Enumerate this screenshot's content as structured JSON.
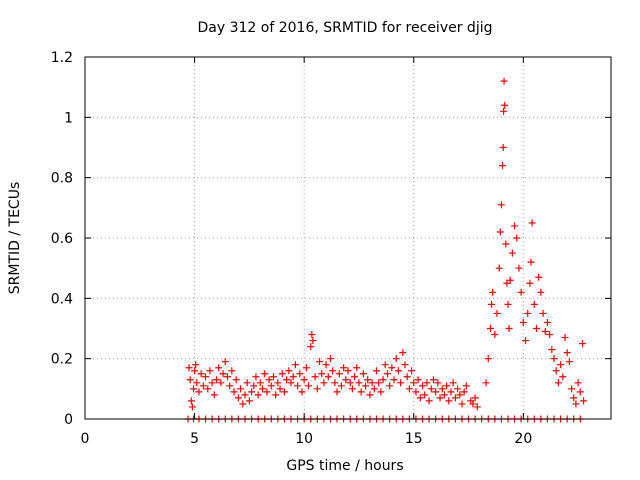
{
  "chart_data": {
    "type": "scatter",
    "title": "Day 312 of 2016, SRMTID for receiver djig",
    "xlabel": "GPS time / hours",
    "ylabel": "SRMTID / TECUs",
    "xlim": [
      0,
      24
    ],
    "ylim": [
      0,
      1.2
    ],
    "xticks": [
      0,
      5,
      10,
      15,
      20
    ],
    "xtick_labels": [
      "0",
      "5",
      "10",
      "15",
      "20"
    ],
    "yticks": [
      0,
      0.2,
      0.4,
      0.6,
      0.8,
      1.0,
      1.2
    ],
    "ytick_labels": [
      "0",
      "0.2",
      "0.4",
      "0.6",
      "0.8",
      "1",
      "1.2"
    ],
    "grid": true,
    "marker": "+",
    "color": "#ff0000",
    "series": [
      {
        "name": "SRMTID",
        "points": [
          [
            4.75,
            0.17
          ],
          [
            4.8,
            0.13
          ],
          [
            4.85,
            0.06
          ],
          [
            4.9,
            0.04
          ],
          [
            4.95,
            0.1
          ],
          [
            5.0,
            0.16
          ],
          [
            5.05,
            0.18
          ],
          [
            5.1,
            0.12
          ],
          [
            5.2,
            0.09
          ],
          [
            5.3,
            0.15
          ],
          [
            5.4,
            0.11
          ],
          [
            5.5,
            0.14
          ],
          [
            5.6,
            0.1
          ],
          [
            5.7,
            0.16
          ],
          [
            5.8,
            0.12
          ],
          [
            5.9,
            0.08
          ],
          [
            6.0,
            0.13
          ],
          [
            6.1,
            0.17
          ],
          [
            6.2,
            0.12
          ],
          [
            6.3,
            0.15
          ],
          [
            6.4,
            0.19
          ],
          [
            6.5,
            0.14
          ],
          [
            6.6,
            0.11
          ],
          [
            6.7,
            0.16
          ],
          [
            6.8,
            0.09
          ],
          [
            6.9,
            0.13
          ],
          [
            7.0,
            0.07
          ],
          [
            7.1,
            0.1
          ],
          [
            7.2,
            0.05
          ],
          [
            7.3,
            0.08
          ],
          [
            7.4,
            0.12
          ],
          [
            7.5,
            0.06
          ],
          [
            7.6,
            0.09
          ],
          [
            7.7,
            0.11
          ],
          [
            7.8,
            0.14
          ],
          [
            7.9,
            0.08
          ],
          [
            8.0,
            0.12
          ],
          [
            8.1,
            0.1
          ],
          [
            8.2,
            0.15
          ],
          [
            8.3,
            0.09
          ],
          [
            8.4,
            0.13
          ],
          [
            8.5,
            0.11
          ],
          [
            8.6,
            0.14
          ],
          [
            8.7,
            0.08
          ],
          [
            8.8,
            0.12
          ],
          [
            8.9,
            0.1
          ],
          [
            9.0,
            0.15
          ],
          [
            9.1,
            0.09
          ],
          [
            9.2,
            0.13
          ],
          [
            9.3,
            0.16
          ],
          [
            9.4,
            0.12
          ],
          [
            9.5,
            0.14
          ],
          [
            9.6,
            0.18
          ],
          [
            9.7,
            0.11
          ],
          [
            9.8,
            0.15
          ],
          [
            9.9,
            0.09
          ],
          [
            10.0,
            0.13
          ],
          [
            10.1,
            0.17
          ],
          [
            10.2,
            0.11
          ],
          [
            10.3,
            0.24
          ],
          [
            10.35,
            0.28
          ],
          [
            10.4,
            0.26
          ],
          [
            10.5,
            0.14
          ],
          [
            10.6,
            0.1
          ],
          [
            10.7,
            0.19
          ],
          [
            10.8,
            0.15
          ],
          [
            10.9,
            0.12
          ],
          [
            11.0,
            0.18
          ],
          [
            11.1,
            0.14
          ],
          [
            11.2,
            0.2
          ],
          [
            11.3,
            0.16
          ],
          [
            11.4,
            0.12
          ],
          [
            11.5,
            0.09
          ],
          [
            11.6,
            0.15
          ],
          [
            11.7,
            0.11
          ],
          [
            11.8,
            0.17
          ],
          [
            11.9,
            0.13
          ],
          [
            12.0,
            0.16
          ],
          [
            12.1,
            0.12
          ],
          [
            12.2,
            0.1
          ],
          [
            12.3,
            0.14
          ],
          [
            12.4,
            0.17
          ],
          [
            12.5,
            0.12
          ],
          [
            12.6,
            0.09
          ],
          [
            12.7,
            0.15
          ],
          [
            12.8,
            0.11
          ],
          [
            12.9,
            0.13
          ],
          [
            13.0,
            0.08
          ],
          [
            13.1,
            0.12
          ],
          [
            13.2,
            0.1
          ],
          [
            13.3,
            0.16
          ],
          [
            13.4,
            0.12
          ],
          [
            13.5,
            0.09
          ],
          [
            13.6,
            0.13
          ],
          [
            13.7,
            0.18
          ],
          [
            13.8,
            0.15
          ],
          [
            13.9,
            0.11
          ],
          [
            14.0,
            0.17
          ],
          [
            14.1,
            0.13
          ],
          [
            14.2,
            0.2
          ],
          [
            14.3,
            0.16
          ],
          [
            14.4,
            0.12
          ],
          [
            14.5,
            0.22
          ],
          [
            14.6,
            0.18
          ],
          [
            14.7,
            0.14
          ],
          [
            14.8,
            0.1
          ],
          [
            14.9,
            0.16
          ],
          [
            15.0,
            0.12
          ],
          [
            15.1,
            0.09
          ],
          [
            15.2,
            0.13
          ],
          [
            15.3,
            0.07
          ],
          [
            15.4,
            0.11
          ],
          [
            15.5,
            0.08
          ],
          [
            15.6,
            0.12
          ],
          [
            15.7,
            0.06
          ],
          [
            15.8,
            0.1
          ],
          [
            15.9,
            0.13
          ],
          [
            16.0,
            0.09
          ],
          [
            16.1,
            0.12
          ],
          [
            16.2,
            0.07
          ],
          [
            16.3,
            0.1
          ],
          [
            16.4,
            0.08
          ],
          [
            16.5,
            0.11
          ],
          [
            16.6,
            0.06
          ],
          [
            16.7,
            0.09
          ],
          [
            16.8,
            0.12
          ],
          [
            16.9,
            0.07
          ],
          [
            17.0,
            0.1
          ],
          [
            17.1,
            0.08
          ],
          [
            17.2,
            0.05
          ],
          [
            17.3,
            0.09
          ],
          [
            17.4,
            0.11
          ],
          [
            17.6,
            0.06
          ],
          [
            17.7,
            0.05
          ],
          [
            17.8,
            0.07
          ],
          [
            17.9,
            0.04
          ],
          [
            18.3,
            0.12
          ],
          [
            18.4,
            0.2
          ],
          [
            18.5,
            0.3
          ],
          [
            18.55,
            0.38
          ],
          [
            18.6,
            0.42
          ],
          [
            18.7,
            0.28
          ],
          [
            18.8,
            0.35
          ],
          [
            18.9,
            0.5
          ],
          [
            18.95,
            0.62
          ],
          [
            19.0,
            0.71
          ],
          [
            19.05,
            0.84
          ],
          [
            19.08,
            0.9
          ],
          [
            19.1,
            1.02
          ],
          [
            19.12,
            1.12
          ],
          [
            19.15,
            1.04
          ],
          [
            19.2,
            0.58
          ],
          [
            19.25,
            0.45
          ],
          [
            19.3,
            0.38
          ],
          [
            19.35,
            0.3
          ],
          [
            19.4,
            0.46
          ],
          [
            19.5,
            0.55
          ],
          [
            19.6,
            0.64
          ],
          [
            19.7,
            0.6
          ],
          [
            19.8,
            0.5
          ],
          [
            19.9,
            0.42
          ],
          [
            20.0,
            0.32
          ],
          [
            20.1,
            0.26
          ],
          [
            20.2,
            0.35
          ],
          [
            20.3,
            0.45
          ],
          [
            20.35,
            0.52
          ],
          [
            20.4,
            0.65
          ],
          [
            20.5,
            0.38
          ],
          [
            20.6,
            0.3
          ],
          [
            20.7,
            0.47
          ],
          [
            20.8,
            0.42
          ],
          [
            20.9,
            0.35
          ],
          [
            21.0,
            0.29
          ],
          [
            21.1,
            0.32
          ],
          [
            21.2,
            0.28
          ],
          [
            21.3,
            0.23
          ],
          [
            21.4,
            0.2
          ],
          [
            21.5,
            0.16
          ],
          [
            21.6,
            0.12
          ],
          [
            21.7,
            0.18
          ],
          [
            21.8,
            0.14
          ],
          [
            21.9,
            0.27
          ],
          [
            22.0,
            0.22
          ],
          [
            22.1,
            0.19
          ],
          [
            22.2,
            0.1
          ],
          [
            22.3,
            0.07
          ],
          [
            22.4,
            0.05
          ],
          [
            22.5,
            0.12
          ],
          [
            22.6,
            0.09
          ],
          [
            22.7,
            0.25
          ],
          [
            22.75,
            0.06
          ],
          [
            4.7,
            0.0
          ],
          [
            4.95,
            0.0
          ],
          [
            5.2,
            0.0
          ],
          [
            5.5,
            0.0
          ],
          [
            5.8,
            0.0
          ],
          [
            6.1,
            0.0
          ],
          [
            6.4,
            0.0
          ],
          [
            6.7,
            0.0
          ],
          [
            7.0,
            0.0
          ],
          [
            7.3,
            0.0
          ],
          [
            7.6,
            0.0
          ],
          [
            7.9,
            0.0
          ],
          [
            8.2,
            0.0
          ],
          [
            8.5,
            0.0
          ],
          [
            8.8,
            0.0
          ],
          [
            9.1,
            0.0
          ],
          [
            9.4,
            0.0
          ],
          [
            9.7,
            0.0
          ],
          [
            10.0,
            0.0
          ],
          [
            10.3,
            0.0
          ],
          [
            10.6,
            0.0
          ],
          [
            10.9,
            0.0
          ],
          [
            11.2,
            0.0
          ],
          [
            11.5,
            0.0
          ],
          [
            11.8,
            0.0
          ],
          [
            12.1,
            0.0
          ],
          [
            12.4,
            0.0
          ],
          [
            12.7,
            0.0
          ],
          [
            13.0,
            0.0
          ],
          [
            13.3,
            0.0
          ],
          [
            13.6,
            0.0
          ],
          [
            13.9,
            0.0
          ],
          [
            14.2,
            0.0
          ],
          [
            14.5,
            0.0
          ],
          [
            14.8,
            0.0
          ],
          [
            15.1,
            0.0
          ],
          [
            15.4,
            0.0
          ],
          [
            15.7,
            0.0
          ],
          [
            16.0,
            0.0
          ],
          [
            16.3,
            0.0
          ],
          [
            16.6,
            0.0
          ],
          [
            16.9,
            0.0
          ],
          [
            17.2,
            0.0
          ],
          [
            17.5,
            0.0
          ],
          [
            17.8,
            0.0
          ],
          [
            18.1,
            0.0
          ],
          [
            18.4,
            0.0
          ],
          [
            18.7,
            0.0
          ],
          [
            19.0,
            0.0
          ],
          [
            19.3,
            0.0
          ],
          [
            19.6,
            0.0
          ],
          [
            19.9,
            0.0
          ],
          [
            20.2,
            0.0
          ],
          [
            20.5,
            0.0
          ],
          [
            20.8,
            0.0
          ],
          [
            21.1,
            0.0
          ],
          [
            21.4,
            0.0
          ],
          [
            21.7,
            0.0
          ],
          [
            22.0,
            0.0
          ],
          [
            22.3,
            0.0
          ],
          [
            22.6,
            0.0
          ]
        ]
      }
    ]
  }
}
